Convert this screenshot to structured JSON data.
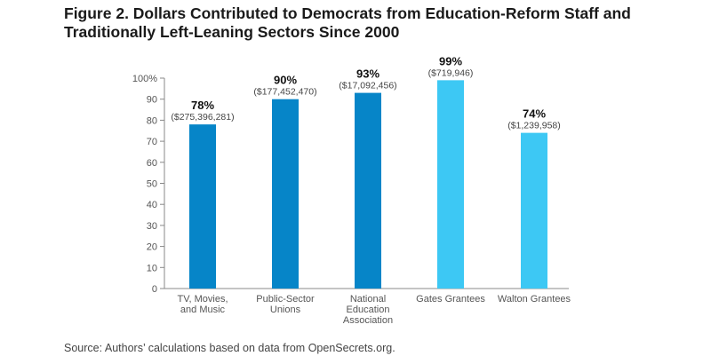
{
  "title": "Figure 2. Dollars Contributed to Democrats from Education-Reform Staff and Traditionally Left-Leaning Sectors Since 2000",
  "source": "Source: Authors’ calculations based on data from OpenSecrets.org.",
  "chart_data": {
    "type": "bar",
    "title": "Figure 2. Dollars Contributed to Democrats from Education-Reform Staff and Traditionally Left-Leaning Sectors Since 2000",
    "categories": [
      [
        "TV, Movies,",
        "and Music"
      ],
      [
        "Public-Sector",
        "Unions"
      ],
      [
        "National",
        "Education",
        "Association"
      ],
      [
        "Gates Grantees"
      ],
      [
        "Walton Grantees"
      ]
    ],
    "values": [
      78,
      90,
      93,
      99,
      74
    ],
    "value_labels": [
      "78%",
      "90%",
      "93%",
      "99%",
      "74%"
    ],
    "dollar_labels": [
      "($275,396,281)",
      "($177,452,470)",
      "($17,092,456)",
      "($719,946)",
      "($1,239,958)"
    ],
    "colors": [
      "#0685c8",
      "#0685c8",
      "#0685c8",
      "#3dc8f4",
      "#3dc8f4"
    ],
    "ylim": [
      0,
      100
    ],
    "yticks": [
      0,
      10,
      20,
      30,
      40,
      50,
      60,
      70,
      80,
      90,
      100
    ],
    "ytick_labels": [
      "0",
      "10",
      "20",
      "30",
      "40",
      "50",
      "60",
      "70",
      "80",
      "90",
      "100%"
    ],
    "grid": false,
    "xlabel": "",
    "ylabel": ""
  }
}
